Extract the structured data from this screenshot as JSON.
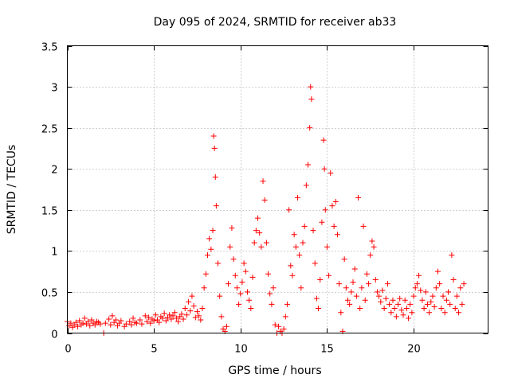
{
  "chart_data": {
    "type": "scatter",
    "title": "Day 095 of 2024, SRMTID for receiver ab33",
    "xlabel": "GPS time / hours",
    "ylabel": "SRMTID / TECUs",
    "xlim": [
      0,
      24.3
    ],
    "ylim": [
      0,
      3.5
    ],
    "grid": true,
    "marker": "+",
    "color": "#ff0000",
    "x_ticks": [
      {
        "value": 0,
        "label": "0"
      },
      {
        "value": 5,
        "label": "5"
      },
      {
        "value": 10,
        "label": "10"
      },
      {
        "value": 15,
        "label": "15"
      },
      {
        "value": 20,
        "label": "20"
      }
    ],
    "y_ticks": [
      {
        "value": 0,
        "label": "0"
      },
      {
        "value": 0.5,
        "label": "0.5"
      },
      {
        "value": 1,
        "label": "1"
      },
      {
        "value": 1.5,
        "label": "1.5"
      },
      {
        "value": 2,
        "label": "2"
      },
      {
        "value": 2.5,
        "label": "2.5"
      },
      {
        "value": 3,
        "label": "3"
      },
      {
        "value": 3.5,
        "label": "3.5"
      }
    ],
    "series": [
      {
        "name": "SRMTID",
        "points": [
          [
            0.0,
            0.14
          ],
          [
            0.1,
            0.09
          ],
          [
            0.2,
            0.12
          ],
          [
            0.3,
            0.07
          ],
          [
            0.4,
            0.1
          ],
          [
            0.5,
            0.13
          ],
          [
            0.6,
            0.08
          ],
          [
            0.7,
            0.15
          ],
          [
            0.8,
            0.1
          ],
          [
            0.9,
            0.12
          ],
          [
            1.0,
            0.18
          ],
          [
            1.1,
            0.11
          ],
          [
            1.2,
            0.14
          ],
          [
            1.3,
            0.09
          ],
          [
            1.4,
            0.16
          ],
          [
            1.5,
            0.12
          ],
          [
            1.6,
            0.1
          ],
          [
            1.7,
            0.14
          ],
          [
            1.8,
            0.13
          ],
          [
            1.9,
            0.11
          ],
          [
            2.1,
            0.0
          ],
          [
            2.2,
            0.12
          ],
          [
            2.4,
            0.17
          ],
          [
            2.5,
            0.1
          ],
          [
            2.6,
            0.21
          ],
          [
            2.7,
            0.13
          ],
          [
            2.8,
            0.16
          ],
          [
            2.9,
            0.09
          ],
          [
            3.0,
            0.12
          ],
          [
            3.1,
            0.15
          ],
          [
            3.3,
            0.08
          ],
          [
            3.4,
            0.11
          ],
          [
            3.6,
            0.14
          ],
          [
            3.7,
            0.1
          ],
          [
            3.8,
            0.18
          ],
          [
            3.9,
            0.13
          ],
          [
            4.0,
            0.12
          ],
          [
            4.2,
            0.16
          ],
          [
            4.3,
            0.11
          ],
          [
            4.5,
            0.21
          ],
          [
            4.6,
            0.14
          ],
          [
            4.7,
            0.19
          ],
          [
            4.8,
            0.12
          ],
          [
            4.9,
            0.17
          ],
          [
            5.0,
            0.15
          ],
          [
            5.1,
            0.22
          ],
          [
            5.2,
            0.16
          ],
          [
            5.3,
            0.13
          ],
          [
            5.4,
            0.2
          ],
          [
            5.5,
            0.18
          ],
          [
            5.6,
            0.24
          ],
          [
            5.7,
            0.15
          ],
          [
            5.8,
            0.19
          ],
          [
            5.9,
            0.22
          ],
          [
            6.0,
            0.17
          ],
          [
            6.1,
            0.21
          ],
          [
            6.2,
            0.25
          ],
          [
            6.3,
            0.18
          ],
          [
            6.4,
            0.14
          ],
          [
            6.5,
            0.2
          ],
          [
            6.6,
            0.23
          ],
          [
            6.7,
            0.17
          ],
          [
            6.8,
            0.3
          ],
          [
            6.9,
            0.22
          ],
          [
            7.0,
            0.38
          ],
          [
            7.1,
            0.27
          ],
          [
            7.2,
            0.45
          ],
          [
            7.3,
            0.33
          ],
          [
            7.4,
            0.19
          ],
          [
            7.5,
            0.26
          ],
          [
            7.6,
            0.21
          ],
          [
            7.7,
            0.16
          ],
          [
            7.8,
            0.3
          ],
          [
            7.9,
            0.55
          ],
          [
            8.0,
            0.72
          ],
          [
            8.1,
            0.95
          ],
          [
            8.2,
            1.15
          ],
          [
            8.3,
            1.02
          ],
          [
            8.4,
            1.25
          ],
          [
            8.45,
            2.4
          ],
          [
            8.5,
            2.25
          ],
          [
            8.55,
            1.9
          ],
          [
            8.6,
            1.55
          ],
          [
            8.7,
            0.85
          ],
          [
            8.8,
            0.45
          ],
          [
            8.9,
            0.2
          ],
          [
            9.0,
            0.05
          ],
          [
            9.1,
            0.02
          ],
          [
            9.2,
            0.08
          ],
          [
            9.3,
            0.6
          ],
          [
            9.4,
            1.05
          ],
          [
            9.5,
            1.28
          ],
          [
            9.6,
            0.9
          ],
          [
            9.7,
            0.7
          ],
          [
            9.8,
            0.55
          ],
          [
            9.9,
            0.35
          ],
          [
            10.0,
            0.48
          ],
          [
            10.1,
            0.62
          ],
          [
            10.2,
            0.85
          ],
          [
            10.3,
            0.75
          ],
          [
            10.4,
            0.5
          ],
          [
            10.5,
            0.4
          ],
          [
            10.6,
            0.3
          ],
          [
            10.7,
            0.68
          ],
          [
            10.8,
            1.1
          ],
          [
            10.9,
            1.25
          ],
          [
            11.0,
            1.4
          ],
          [
            11.1,
            1.22
          ],
          [
            11.2,
            1.05
          ],
          [
            11.3,
            1.85
          ],
          [
            11.4,
            1.62
          ],
          [
            11.5,
            1.1
          ],
          [
            11.6,
            0.72
          ],
          [
            11.7,
            0.48
          ],
          [
            11.8,
            0.35
          ],
          [
            11.9,
            0.55
          ],
          [
            12.0,
            0.1
          ],
          [
            12.1,
            0.0
          ],
          [
            12.2,
            0.08
          ],
          [
            12.3,
            0.02
          ],
          [
            12.4,
            0.0
          ],
          [
            12.5,
            0.05
          ],
          [
            12.6,
            0.2
          ],
          [
            12.7,
            0.35
          ],
          [
            12.8,
            1.5
          ],
          [
            12.9,
            0.82
          ],
          [
            13.0,
            0.7
          ],
          [
            13.1,
            1.2
          ],
          [
            13.2,
            1.05
          ],
          [
            13.3,
            1.65
          ],
          [
            13.4,
            0.95
          ],
          [
            13.5,
            0.55
          ],
          [
            13.6,
            1.1
          ],
          [
            13.7,
            1.3
          ],
          [
            13.8,
            1.8
          ],
          [
            13.9,
            2.05
          ],
          [
            14.0,
            2.5
          ],
          [
            14.05,
            3.0
          ],
          [
            14.1,
            2.85
          ],
          [
            14.2,
            1.25
          ],
          [
            14.3,
            0.85
          ],
          [
            14.4,
            0.42
          ],
          [
            14.5,
            0.3
          ],
          [
            14.6,
            0.65
          ],
          [
            14.7,
            1.35
          ],
          [
            14.8,
            2.35
          ],
          [
            14.85,
            2.0
          ],
          [
            14.9,
            1.5
          ],
          [
            15.0,
            1.05
          ],
          [
            15.1,
            0.7
          ],
          [
            15.2,
            1.95
          ],
          [
            15.3,
            1.55
          ],
          [
            15.4,
            1.3
          ],
          [
            15.5,
            1.6
          ],
          [
            15.6,
            1.2
          ],
          [
            15.7,
            0.6
          ],
          [
            15.8,
            0.25
          ],
          [
            15.9,
            0.02
          ],
          [
            16.0,
            0.9
          ],
          [
            16.1,
            0.55
          ],
          [
            16.2,
            0.4
          ],
          [
            16.3,
            0.35
          ],
          [
            16.4,
            0.5
          ],
          [
            16.5,
            0.62
          ],
          [
            16.6,
            0.78
          ],
          [
            16.7,
            0.45
          ],
          [
            16.8,
            1.65
          ],
          [
            16.9,
            0.3
          ],
          [
            17.0,
            0.55
          ],
          [
            17.1,
            1.3
          ],
          [
            17.2,
            0.4
          ],
          [
            17.3,
            0.72
          ],
          [
            17.4,
            0.6
          ],
          [
            17.5,
            0.95
          ],
          [
            17.6,
            1.12
          ],
          [
            17.7,
            1.05
          ],
          [
            17.8,
            0.65
          ],
          [
            17.9,
            0.5
          ],
          [
            18.0,
            0.45
          ],
          [
            18.1,
            0.38
          ],
          [
            18.2,
            0.52
          ],
          [
            18.3,
            0.3
          ],
          [
            18.4,
            0.42
          ],
          [
            18.5,
            0.6
          ],
          [
            18.6,
            0.35
          ],
          [
            18.7,
            0.25
          ],
          [
            18.8,
            0.4
          ],
          [
            18.9,
            0.3
          ],
          [
            19.0,
            0.2
          ],
          [
            19.1,
            0.35
          ],
          [
            19.2,
            0.42
          ],
          [
            19.3,
            0.28
          ],
          [
            19.4,
            0.22
          ],
          [
            19.5,
            0.4
          ],
          [
            19.6,
            0.3
          ],
          [
            19.7,
            0.18
          ],
          [
            19.8,
            0.35
          ],
          [
            19.9,
            0.25
          ],
          [
            20.0,
            0.45
          ],
          [
            20.1,
            0.55
          ],
          [
            20.2,
            0.6
          ],
          [
            20.3,
            0.7
          ],
          [
            20.4,
            0.52
          ],
          [
            20.5,
            0.4
          ],
          [
            20.6,
            0.3
          ],
          [
            20.7,
            0.5
          ],
          [
            20.8,
            0.35
          ],
          [
            20.9,
            0.25
          ],
          [
            21.0,
            0.38
          ],
          [
            21.1,
            0.45
          ],
          [
            21.2,
            0.32
          ],
          [
            21.3,
            0.55
          ],
          [
            21.4,
            0.75
          ],
          [
            21.5,
            0.6
          ],
          [
            21.6,
            0.3
          ],
          [
            21.7,
            0.45
          ],
          [
            21.8,
            0.25
          ],
          [
            21.9,
            0.4
          ],
          [
            22.0,
            0.5
          ],
          [
            22.1,
            0.35
          ],
          [
            22.2,
            0.95
          ],
          [
            22.3,
            0.65
          ],
          [
            22.4,
            0.3
          ],
          [
            22.5,
            0.45
          ],
          [
            22.6,
            0.25
          ],
          [
            22.7,
            0.55
          ],
          [
            22.8,
            0.35
          ],
          [
            22.9,
            0.6
          ]
        ]
      }
    ]
  }
}
